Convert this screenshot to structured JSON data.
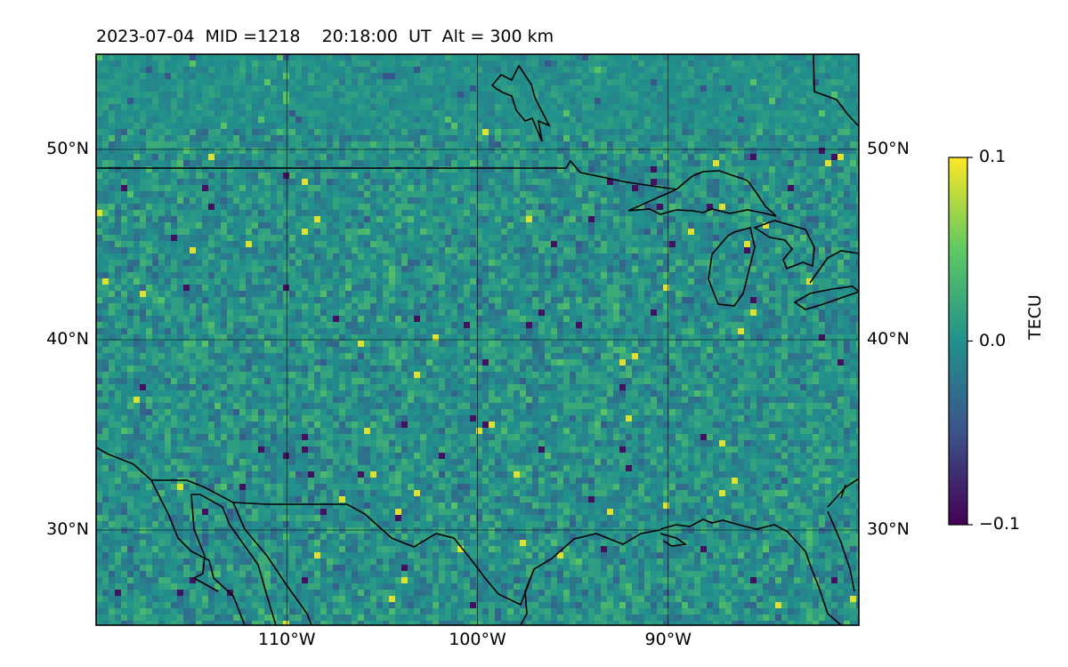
{
  "title": "2023-07-04  MID =1218    20:18:00  UT  Alt = 300 km",
  "map": {
    "projection": "PlateCarree",
    "lon_range": [
      -120,
      -80
    ],
    "lat_range": [
      25,
      55
    ],
    "field": "TEC perturbation"
  },
  "lat_ticks": [
    {
      "value": 50,
      "label": "50°N"
    },
    {
      "value": 40,
      "label": "40°N"
    },
    {
      "value": 30,
      "label": "30°N"
    }
  ],
  "lon_ticks": [
    {
      "value": -110,
      "label": "110°W"
    },
    {
      "value": -100,
      "label": "100°W"
    },
    {
      "value": -90,
      "label": "90°W"
    }
  ],
  "colorbar": {
    "label": "TECU",
    "colormap": "viridis",
    "min": -0.1,
    "max": 0.1,
    "ticks": [
      {
        "value": 0.1,
        "label": "0.1"
      },
      {
        "value": 0.0,
        "label": "0.0"
      },
      {
        "value": -0.1,
        "label": "−0.1"
      }
    ],
    "colors": [
      "#440154",
      "#3b528b",
      "#21918c",
      "#5ec962",
      "#fde725"
    ]
  }
}
